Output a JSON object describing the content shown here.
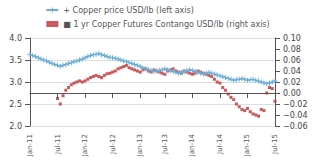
{
  "chart_data": {
    "type": "line",
    "categories": [
      "Jan-11",
      null,
      null,
      null,
      null,
      null,
      null,
      null,
      null,
      null,
      "Jul-11",
      null,
      null,
      null,
      null,
      null,
      null,
      null,
      null,
      null,
      "Jan-12",
      null,
      null,
      null,
      null,
      null,
      null,
      null,
      null,
      null,
      "Jul-12",
      null,
      null,
      null,
      null,
      null,
      null,
      null,
      null,
      null,
      "Jan-13",
      null,
      null,
      null,
      null,
      null,
      null,
      null,
      null,
      "Jul-13",
      null,
      null,
      null,
      null,
      null,
      null,
      null,
      null,
      null,
      "Jan-14",
      null,
      null,
      null,
      null,
      null,
      null,
      null,
      null,
      null,
      "Jul-14",
      null,
      null,
      null,
      null,
      null,
      null,
      null,
      null,
      null,
      "Jan-15",
      null,
      null,
      null,
      null,
      null,
      null,
      null,
      null,
      null,
      "Jul-15"
    ],
    "series": [
      {
        "name": "+ Copper price USD/lb (left axis)",
        "type": "line",
        "color": "#6aaed6",
        "marker": "plus",
        "values": [
          3.62,
          3.6,
          3.58,
          3.55,
          3.52,
          3.5,
          3.48,
          3.45,
          3.42,
          3.4,
          3.38,
          3.36,
          3.38,
          3.4,
          3.42,
          3.44,
          3.46,
          3.48,
          3.5,
          3.52,
          3.55,
          3.58,
          3.6,
          3.62,
          3.63,
          3.65,
          3.62,
          3.6,
          3.58,
          3.56,
          3.55,
          3.54,
          3.52,
          3.5,
          3.48,
          3.46,
          3.44,
          3.42,
          3.4,
          3.38,
          3.35,
          3.32,
          3.3,
          3.28,
          3.26,
          3.24,
          3.25,
          3.26,
          3.28,
          3.3,
          3.28,
          3.26,
          3.24,
          3.22,
          3.2,
          3.22,
          3.24,
          3.26,
          3.28,
          3.26,
          3.24,
          3.22,
          3.2,
          3.18,
          3.2,
          3.22,
          3.2,
          3.18,
          3.16,
          3.14,
          3.12,
          3.1,
          3.08,
          3.06,
          3.04,
          3.05,
          3.06,
          3.08,
          3.06,
          3.04,
          3.05,
          3.06,
          3.04,
          3.02,
          3.0,
          2.98,
          2.96,
          2.98,
          3.0,
          3.02
        ]
      },
      {
        "name": "■ 1 yr Copper Futures Contango USD/lb (right axis)",
        "type": "scatter",
        "color": "#bf3030",
        "marker": "square",
        "axis": "y2",
        "values": [
          null,
          null,
          null,
          null,
          null,
          null,
          null,
          null,
          null,
          null,
          -0.01,
          -0.02,
          -0.005,
          0.005,
          0.01,
          0.015,
          0.018,
          0.02,
          0.022,
          0.02,
          0.022,
          0.025,
          0.028,
          0.03,
          0.032,
          0.03,
          0.028,
          0.032,
          0.035,
          0.036,
          0.038,
          0.04,
          0.044,
          0.046,
          0.048,
          0.05,
          0.046,
          0.044,
          0.042,
          0.04,
          0.038,
          0.042,
          0.044,
          0.04,
          0.038,
          0.042,
          0.04,
          0.038,
          0.036,
          0.034,
          0.04,
          0.042,
          0.044,
          0.04,
          0.038,
          0.036,
          0.04,
          0.038,
          0.036,
          0.034,
          0.036,
          0.04,
          0.038,
          0.036,
          0.034,
          0.032,
          0.03,
          0.025,
          0.02,
          0.018,
          0.01,
          0.005,
          -0.002,
          -0.008,
          -0.012,
          -0.02,
          -0.025,
          -0.03,
          -0.032,
          -0.028,
          -0.034,
          -0.038,
          -0.04,
          -0.042,
          -0.03,
          -0.032,
          0.0,
          0.01,
          0.008,
          -0.015
        ]
      }
    ],
    "ylim": [
      2.0,
      4.0
    ],
    "yticks": [
      {
        "value": 2.0,
        "label": "2.0"
      },
      2.5,
      {
        "value": 3.0,
        "label": "3.0"
      },
      3.5,
      {
        "value": 4.0,
        "label": "4.0"
      }
    ],
    "y2lim": [
      -0.06,
      0.1
    ],
    "y2ticks": [
      {
        "value": -0.06,
        "label": "−0.06"
      },
      {
        "value": -0.04,
        "label": "−0.04"
      },
      {
        "value": -0.02,
        "label": "−0.02"
      },
      {
        "value": 0.0,
        "label": "0.00"
      },
      0.02,
      0.04,
      0.06,
      0.08,
      {
        "value": 0.1,
        "label": "0.10"
      }
    ],
    "grid": true,
    "legend": "top"
  }
}
